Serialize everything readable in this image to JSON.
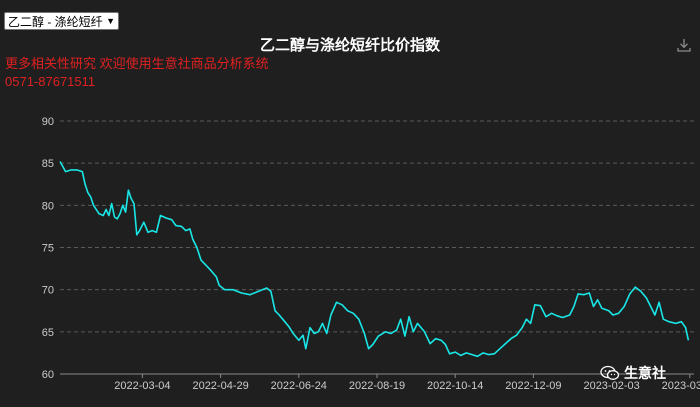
{
  "selector": {
    "value": "乙二醇 - 涤纶短纤"
  },
  "header": {
    "promo_line1": "更多相关性研究 欢迎使用生意社商品分析系统",
    "promo_line2": "0571-87671511"
  },
  "watermark": {
    "text": "生意社"
  },
  "colors": {
    "line": "#19e6e6",
    "grid": "#5a5a5a",
    "axis_text": "#cccccc",
    "background": "#1f1f1f",
    "promo": "#e02020"
  },
  "chart_data": {
    "type": "line",
    "title": "乙二醇与涤纶短纤比价指数",
    "xlabel": "",
    "ylabel": "",
    "ylim": [
      60,
      90
    ],
    "yticks": [
      60,
      65,
      70,
      75,
      80,
      85,
      90
    ],
    "xlim": [
      "2022-01-04",
      "2023-04-03"
    ],
    "xticks": [
      "2022-03-04",
      "2022-04-29",
      "2022-06-24",
      "2022-08-19",
      "2022-10-14",
      "2022-12-09",
      "2023-02-03",
      "2023-03-31"
    ],
    "grid": true,
    "legend": "none",
    "series": [
      {
        "points": [
          [
            "2022-01-04",
            85.2
          ],
          [
            "2022-01-06",
            84.6
          ],
          [
            "2022-01-08",
            84.0
          ],
          [
            "2022-01-12",
            84.2
          ],
          [
            "2022-01-16",
            84.2
          ],
          [
            "2022-01-20",
            84.0
          ],
          [
            "2022-01-22",
            82.5
          ],
          [
            "2022-01-24",
            81.5
          ],
          [
            "2022-01-26",
            81.0
          ],
          [
            "2022-01-28",
            80.0
          ],
          [
            "2022-02-01",
            79.0
          ],
          [
            "2022-02-04",
            78.8
          ],
          [
            "2022-02-06",
            79.5
          ],
          [
            "2022-02-08",
            78.8
          ],
          [
            "2022-02-10",
            80.2
          ],
          [
            "2022-02-12",
            78.6
          ],
          [
            "2022-02-14",
            78.4
          ],
          [
            "2022-02-16",
            79.0
          ],
          [
            "2022-02-18",
            80.0
          ],
          [
            "2022-02-20",
            79.2
          ],
          [
            "2022-02-22",
            81.8
          ],
          [
            "2022-02-24",
            80.8
          ],
          [
            "2022-02-26",
            80.2
          ],
          [
            "2022-02-28",
            76.5
          ],
          [
            "2022-03-02",
            77.0
          ],
          [
            "2022-03-05",
            78.0
          ],
          [
            "2022-03-08",
            76.8
          ],
          [
            "2022-03-11",
            77.0
          ],
          [
            "2022-03-14",
            76.8
          ],
          [
            "2022-03-17",
            78.8
          ],
          [
            "2022-03-21",
            78.5
          ],
          [
            "2022-03-25",
            78.3
          ],
          [
            "2022-03-28",
            77.6
          ],
          [
            "2022-04-01",
            77.5
          ],
          [
            "2022-04-04",
            77.0
          ],
          [
            "2022-04-07",
            77.2
          ],
          [
            "2022-04-09",
            76.0
          ],
          [
            "2022-04-12",
            75.0
          ],
          [
            "2022-04-15",
            73.5
          ],
          [
            "2022-04-18",
            73.0
          ],
          [
            "2022-04-22",
            72.3
          ],
          [
            "2022-04-26",
            71.5
          ],
          [
            "2022-04-28",
            70.5
          ],
          [
            "2022-05-02",
            70.0
          ],
          [
            "2022-05-08",
            70.0
          ],
          [
            "2022-05-14",
            69.6
          ],
          [
            "2022-05-20",
            69.4
          ],
          [
            "2022-05-26",
            69.8
          ],
          [
            "2022-06-01",
            70.2
          ],
          [
            "2022-06-04",
            69.8
          ],
          [
            "2022-06-07",
            67.5
          ],
          [
            "2022-06-10",
            67.0
          ],
          [
            "2022-06-14",
            66.2
          ],
          [
            "2022-06-17",
            65.6
          ],
          [
            "2022-06-20",
            64.8
          ],
          [
            "2022-06-24",
            64.0
          ],
          [
            "2022-06-27",
            64.6
          ],
          [
            "2022-06-29",
            63.0
          ],
          [
            "2022-07-02",
            65.5
          ],
          [
            "2022-07-05",
            64.8
          ],
          [
            "2022-07-08",
            65.0
          ],
          [
            "2022-07-11",
            66.0
          ],
          [
            "2022-07-14",
            64.8
          ],
          [
            "2022-07-17",
            67.0
          ],
          [
            "2022-07-21",
            68.5
          ],
          [
            "2022-07-25",
            68.2
          ],
          [
            "2022-07-29",
            67.5
          ],
          [
            "2022-08-02",
            67.2
          ],
          [
            "2022-08-06",
            66.5
          ],
          [
            "2022-08-10",
            64.8
          ],
          [
            "2022-08-13",
            63.0
          ],
          [
            "2022-08-16",
            63.5
          ],
          [
            "2022-08-20",
            64.5
          ],
          [
            "2022-08-25",
            65.0
          ],
          [
            "2022-08-29",
            64.8
          ],
          [
            "2022-09-02",
            65.2
          ],
          [
            "2022-09-05",
            66.5
          ],
          [
            "2022-09-08",
            64.5
          ],
          [
            "2022-09-11",
            66.8
          ],
          [
            "2022-09-14",
            65.0
          ],
          [
            "2022-09-17",
            66.0
          ],
          [
            "2022-09-22",
            65.0
          ],
          [
            "2022-09-26",
            63.6
          ],
          [
            "2022-09-30",
            64.2
          ],
          [
            "2022-10-04",
            64.0
          ],
          [
            "2022-10-07",
            63.5
          ],
          [
            "2022-10-10",
            62.4
          ],
          [
            "2022-10-14",
            62.6
          ],
          [
            "2022-10-18",
            62.2
          ],
          [
            "2022-10-22",
            62.5
          ],
          [
            "2022-10-26",
            62.3
          ],
          [
            "2022-10-30",
            62.1
          ],
          [
            "2022-11-03",
            62.5
          ],
          [
            "2022-11-07",
            62.3
          ],
          [
            "2022-11-11",
            62.4
          ],
          [
            "2022-11-15",
            63.0
          ],
          [
            "2022-11-19",
            63.6
          ],
          [
            "2022-11-23",
            64.2
          ],
          [
            "2022-11-27",
            64.6
          ],
          [
            "2022-12-01",
            65.5
          ],
          [
            "2022-12-04",
            66.5
          ],
          [
            "2022-12-07",
            66.0
          ],
          [
            "2022-12-10",
            68.2
          ],
          [
            "2022-12-14",
            68.1
          ],
          [
            "2022-12-18",
            66.8
          ],
          [
            "2022-12-22",
            67.2
          ],
          [
            "2022-12-26",
            66.9
          ],
          [
            "2022-12-30",
            66.7
          ],
          [
            "2023-01-04",
            67.0
          ],
          [
            "2023-01-07",
            68.0
          ],
          [
            "2023-01-10",
            69.5
          ],
          [
            "2023-01-14",
            69.4
          ],
          [
            "2023-01-18",
            69.6
          ],
          [
            "2023-01-21",
            68.0
          ],
          [
            "2023-01-24",
            68.8
          ],
          [
            "2023-01-27",
            67.8
          ],
          [
            "2023-02-01",
            67.5
          ],
          [
            "2023-02-04",
            67.0
          ],
          [
            "2023-02-08",
            67.2
          ],
          [
            "2023-02-12",
            68.0
          ],
          [
            "2023-02-16",
            69.5
          ],
          [
            "2023-02-20",
            70.3
          ],
          [
            "2023-02-24",
            69.8
          ],
          [
            "2023-02-28",
            69.0
          ],
          [
            "2023-03-03",
            68.0
          ],
          [
            "2023-03-06",
            67.0
          ],
          [
            "2023-03-09",
            68.5
          ],
          [
            "2023-03-12",
            66.5
          ],
          [
            "2023-03-16",
            66.2
          ],
          [
            "2023-03-21",
            66.0
          ],
          [
            "2023-03-25",
            66.2
          ],
          [
            "2023-03-28",
            65.5
          ],
          [
            "2023-03-30",
            64.0
          ]
        ]
      }
    ]
  }
}
